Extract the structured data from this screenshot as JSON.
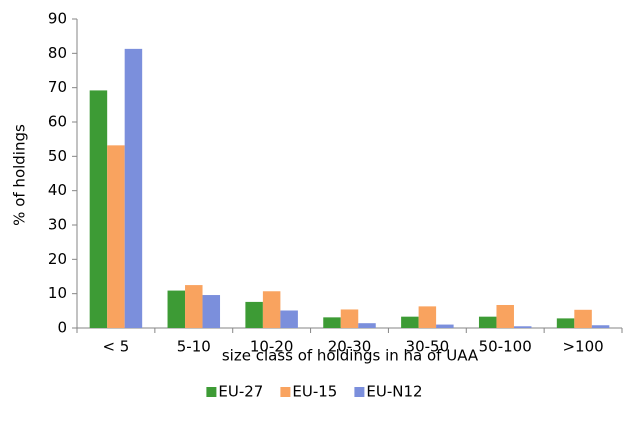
{
  "chart_data": {
    "type": "bar",
    "categories": [
      "< 5",
      "5-10",
      "10-20",
      "20-30",
      "30-50",
      "50-100",
      ">100"
    ],
    "series": [
      {
        "name": "EU-27",
        "color": "#3d9b35",
        "values": [
          69.2,
          10.9,
          7.6,
          3.1,
          3.3,
          3.3,
          2.8
        ]
      },
      {
        "name": "EU-15",
        "color": "#f9a35f",
        "values": [
          53.2,
          12.5,
          10.7,
          5.4,
          6.3,
          6.7,
          5.3
        ]
      },
      {
        "name": "EU-N12",
        "color": "#7b8fdc",
        "values": [
          81.3,
          9.6,
          5.1,
          1.4,
          1.0,
          0.5,
          0.8
        ]
      }
    ],
    "x_label": "size class of holdings in ha of UAA",
    "y_label": "% of holdings",
    "ylim": [
      0,
      90
    ],
    "yticks": [
      0,
      10,
      20,
      30,
      40,
      50,
      60,
      70,
      80,
      90
    ],
    "grid": false,
    "legend": "bottom"
  }
}
